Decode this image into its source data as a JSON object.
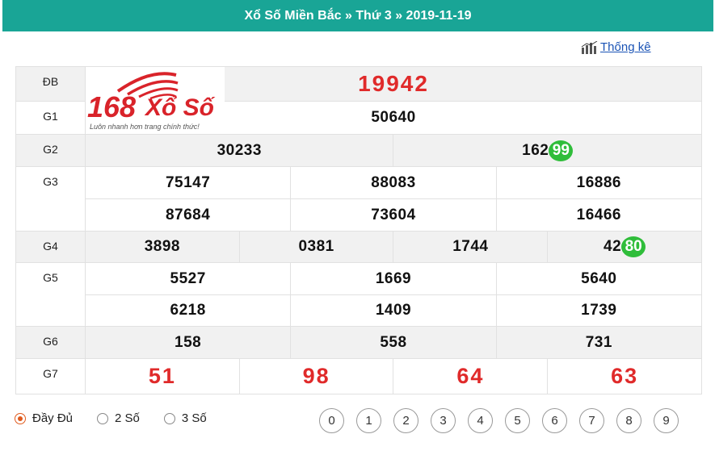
{
  "header": {
    "title": "Xổ Số Miền Bắc » Thứ 3 » 2019-11-19"
  },
  "stats_link": {
    "label": "Thống kê",
    "icon": "bar-chart-icon"
  },
  "logo": {
    "text_168": "168",
    "text_name": "Xổ Số",
    "tagline": "Luôn nhanh hơn trang chính thức!"
  },
  "colors": {
    "header_bg": "#19a596",
    "special_red": "#e02a2a",
    "highlight_green": "#2fbd3a"
  },
  "results": {
    "db": {
      "label": "ĐB",
      "value": "19942"
    },
    "g1": {
      "label": "G1",
      "value": "50640"
    },
    "g2": {
      "label": "G2",
      "values": [
        {
          "main": "30233",
          "tail": ""
        },
        {
          "main": "162",
          "tail": "99"
        }
      ]
    },
    "g3": {
      "label": "G3",
      "values": [
        "75147",
        "88083",
        "16886",
        "87684",
        "73604",
        "16466"
      ]
    },
    "g4": {
      "label": "G4",
      "values": [
        {
          "main": "3898",
          "tail": ""
        },
        {
          "main": "0381",
          "tail": ""
        },
        {
          "main": "1744",
          "tail": ""
        },
        {
          "main": "42",
          "tail": "80"
        }
      ]
    },
    "g5": {
      "label": "G5",
      "values": [
        "5527",
        "1669",
        "5640",
        "6218",
        "1409",
        "1739"
      ]
    },
    "g6": {
      "label": "G6",
      "values": [
        "158",
        "558",
        "731"
      ]
    },
    "g7": {
      "label": "G7",
      "values": [
        "51",
        "98",
        "64",
        "63"
      ]
    }
  },
  "display_options": {
    "selected": "Đầy Đủ",
    "options": [
      "Đầy Đủ",
      "2 Số",
      "3 Số"
    ]
  },
  "digit_filter": [
    "0",
    "1",
    "2",
    "3",
    "4",
    "5",
    "6",
    "7",
    "8",
    "9"
  ]
}
